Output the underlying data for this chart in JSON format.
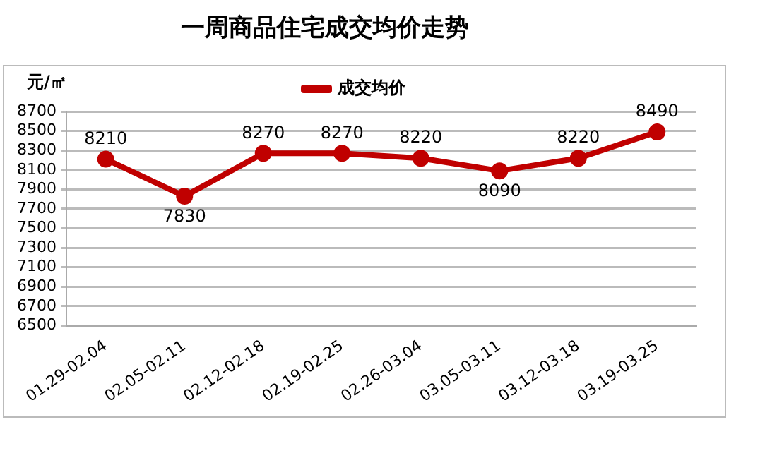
{
  "chart_data": {
    "type": "line",
    "title": "一周商品住宅成交均价走势",
    "ylabel": "元/㎡",
    "categories": [
      "01.29-02.04",
      "02.05-02.11",
      "02.12-02.18",
      "02.19-02.25",
      "02.26-03.04",
      "03.05-03.11",
      "03.12-03.18",
      "03.19-03.25"
    ],
    "series": [
      {
        "name": "成交均价",
        "color": "#c00000",
        "values": [
          8210,
          7830,
          8270,
          8270,
          8220,
          8090,
          8220,
          8490
        ]
      }
    ],
    "ylim": [
      6500,
      8700
    ],
    "yticks": [
      6500,
      6700,
      6900,
      7100,
      7300,
      7500,
      7700,
      7900,
      8100,
      8300,
      8500,
      8700
    ],
    "grid": "y",
    "legend": "top",
    "marker": "circle",
    "line_style": "solid",
    "data_labels": true
  }
}
